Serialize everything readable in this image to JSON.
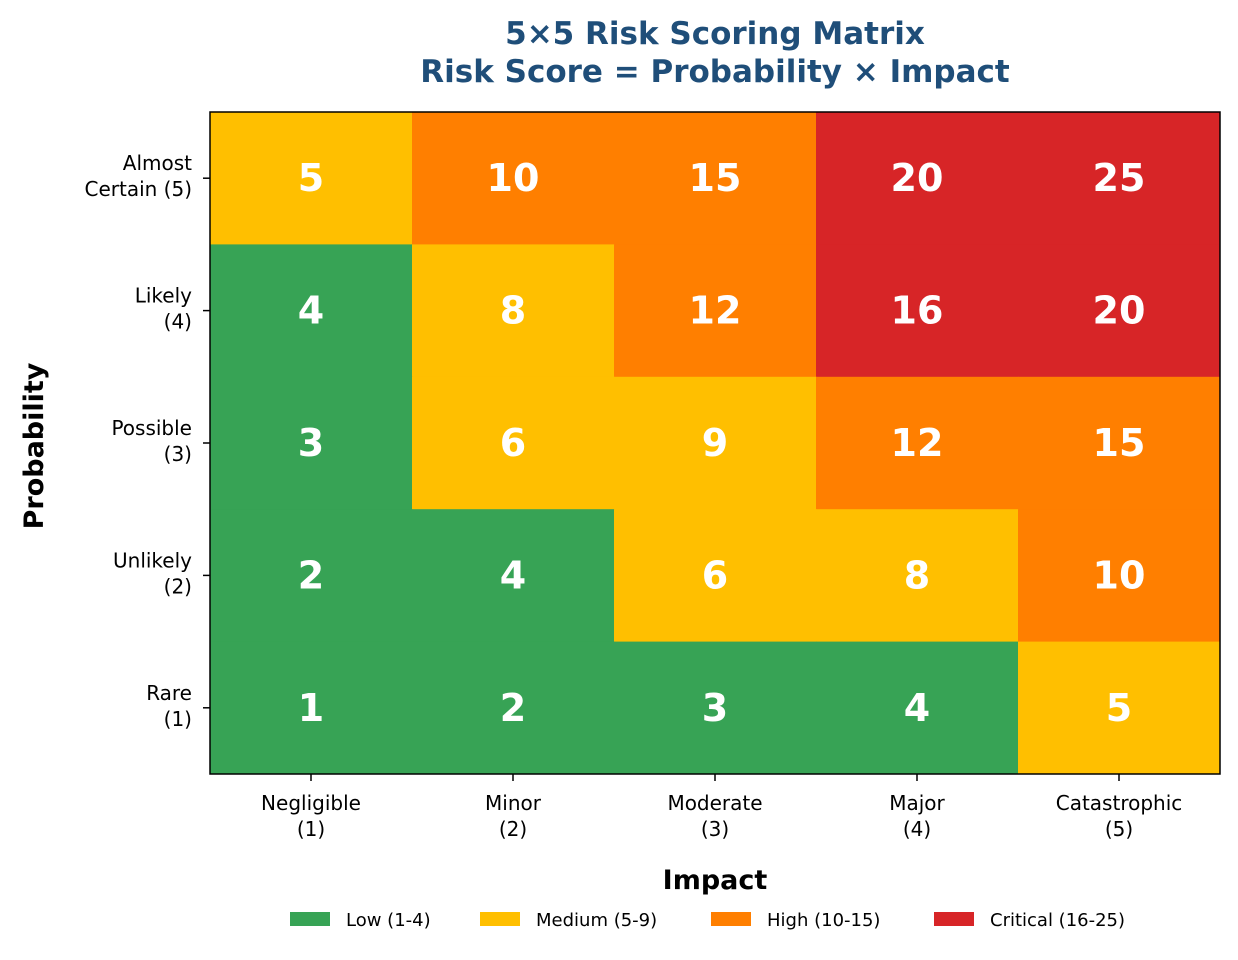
{
  "chart_data": {
    "type": "heatmap",
    "title": "5×5 Risk Scoring Matrix",
    "subtitle": "Risk Score = Probability × Impact",
    "xlabel": "Impact",
    "ylabel": "Probability",
    "x_categories": [
      [
        "Negligible",
        "(1)"
      ],
      [
        "Minor",
        "(2)"
      ],
      [
        "Moderate",
        "(3)"
      ],
      [
        "Major",
        "(4)"
      ],
      [
        "Catastrophic",
        "(5)"
      ]
    ],
    "y_categories": [
      [
        "Almost",
        "Certain (5)"
      ],
      [
        "Likely",
        "(4)"
      ],
      [
        "Possible",
        "(3)"
      ],
      [
        "Unlikely",
        "(2)"
      ],
      [
        "Rare",
        "(1)"
      ]
    ],
    "values": [
      [
        5,
        10,
        15,
        20,
        25
      ],
      [
        4,
        8,
        12,
        16,
        20
      ],
      [
        3,
        6,
        9,
        12,
        15
      ],
      [
        2,
        4,
        6,
        8,
        10
      ],
      [
        1,
        2,
        3,
        4,
        5
      ]
    ],
    "categories": [
      {
        "name": "Low (1-4)",
        "min": 1,
        "max": 4,
        "color": "#37a355"
      },
      {
        "name": "Medium (5-9)",
        "min": 5,
        "max": 9,
        "color": "#ffbf00"
      },
      {
        "name": "High (10-15)",
        "min": 10,
        "max": 15,
        "color": "#ff7f00"
      },
      {
        "name": "Critical (16-25)",
        "min": 16,
        "max": 25,
        "color": "#d72527"
      }
    ],
    "legend_position": "bottom",
    "title_color": "#1f4e79",
    "grid": false
  }
}
